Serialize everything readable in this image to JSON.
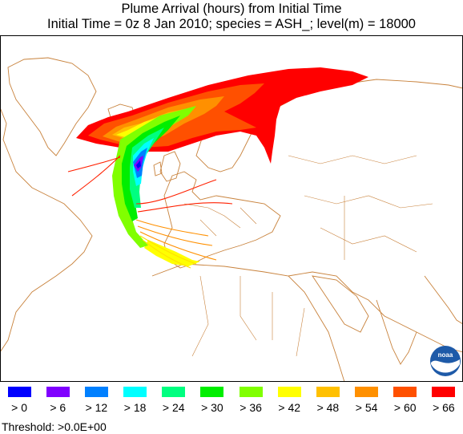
{
  "title": {
    "line1": "Plume Arrival (hours) from Initial Time",
    "line2": "Initial Time =  0z  8 Jan 2010;  species = ASH_;  level(m) = 18000"
  },
  "legend": [
    {
      "label": "> 0",
      "color": "#0000ff"
    },
    {
      "label": "> 6",
      "color": "#8000ff"
    },
    {
      "label": "> 12",
      "color": "#0080ff"
    },
    {
      "label": "> 18",
      "color": "#00ffff"
    },
    {
      "label": "> 24",
      "color": "#00ff80"
    },
    {
      "label": "> 30",
      "color": "#00ee00"
    },
    {
      "label": "> 36",
      "color": "#80ff00"
    },
    {
      "label": "> 42",
      "color": "#ffff00"
    },
    {
      "label": "> 48",
      "color": "#ffc000"
    },
    {
      "label": "> 54",
      "color": "#ff9000"
    },
    {
      "label": "> 60",
      "color": "#ff5000"
    },
    {
      "label": "> 66",
      "color": "#ff0000"
    }
  ],
  "threshold": "Threshold: >0.0E+00",
  "logo": {
    "text": "noaa"
  },
  "colors": {
    "coastline": "#c8823c"
  }
}
